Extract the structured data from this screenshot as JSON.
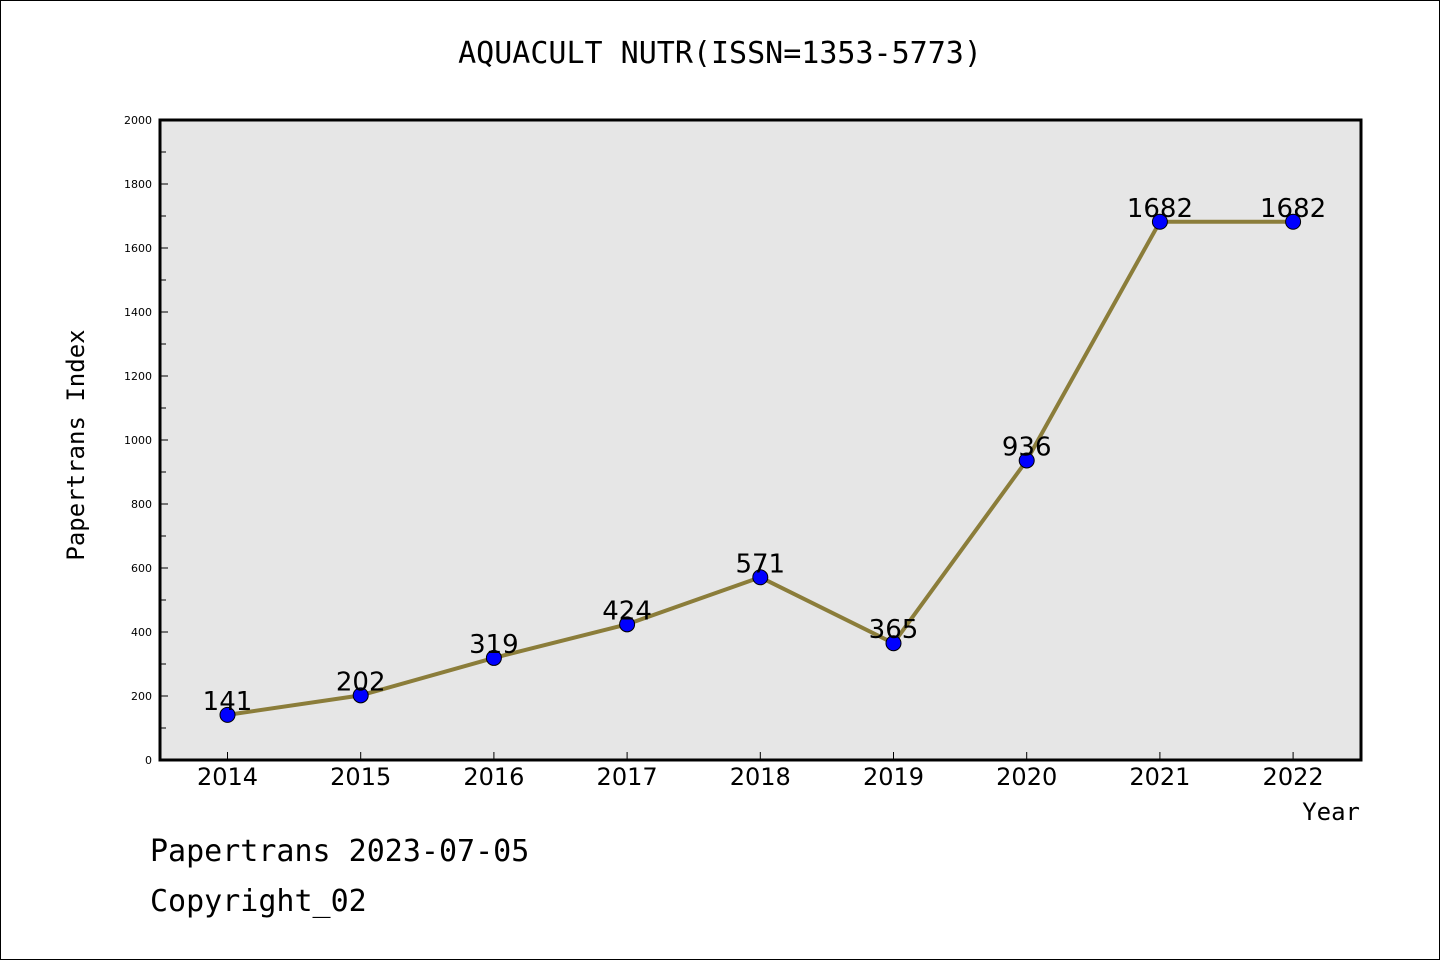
{
  "title": "AQUACULT NUTR(ISSN=1353-5773)",
  "footer": {
    "line1": "Papertrans 2023-07-05",
    "line2": "Copyright_02"
  },
  "colors": {
    "line": "#8B7D3A",
    "marker": "#0000FF",
    "plot_bg": "#E6E6E6"
  },
  "chart_data": {
    "type": "line",
    "title": "AQUACULT NUTR(ISSN=1353-5773)",
    "xlabel": "Year",
    "ylabel": "Papertrans Index",
    "x": [
      "2014",
      "2015",
      "2016",
      "2017",
      "2018",
      "2019",
      "2020",
      "2021",
      "2022"
    ],
    "values": [
      141,
      202,
      319,
      424,
      571,
      365,
      936,
      1682,
      1682
    ],
    "data_labels": [
      "141",
      "202",
      "319",
      "424",
      "571",
      "365",
      "936",
      "1682",
      "1682"
    ],
    "ylim": [
      0,
      2000
    ],
    "yticks": [
      "0",
      "200",
      "400",
      "600",
      "800",
      "1000",
      "1200",
      "1400",
      "1600",
      "1800",
      "2000"
    ],
    "grid": false,
    "legend": "none"
  }
}
